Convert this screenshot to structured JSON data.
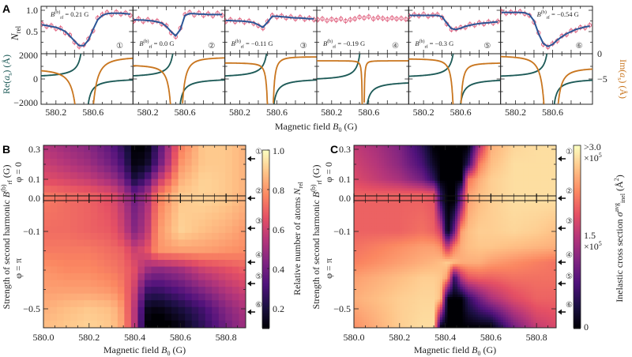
{
  "figure": {
    "panel_letters": {
      "a": "A",
      "b": "B",
      "c": "C"
    },
    "colors": {
      "fit": "#2b5797",
      "data": "#e0607e",
      "re_curve": "#1d5a57",
      "im_curve": "#c9761f",
      "axis": "#222222"
    },
    "colormap_magma": [
      "#000004",
      "#1c1044",
      "#4f127b",
      "#812581",
      "#b5367a",
      "#e55064",
      "#fb8761",
      "#fec287",
      "#fcfdbf"
    ]
  },
  "panel_a": {
    "ylabel_top": {
      "sym": "N",
      "sub": "rel"
    },
    "ylabel_re": {
      "pre": "Re(",
      "sym": "a",
      "sub": "s",
      "post": ") (Å)"
    },
    "ylabel_im": {
      "pre": "Im(",
      "sym": "a",
      "sub": "s",
      "post": ") (Å)"
    },
    "xlabel": {
      "pre": "Magnetic field ",
      "sym": "B",
      "sub": "0",
      "post": " (G)"
    },
    "brf_symbol": {
      "base": "B",
      "sup": "(b)",
      "sub": "rf"
    }
  },
  "panel_b": {
    "xlabel": {
      "pre": "Magnetic field ",
      "sym": "B",
      "sub": "0",
      "post": " (G)"
    },
    "ylabel": {
      "pre": "Strength of second harmonic ",
      "sym": "B",
      "sup": "(b)",
      "sub": "rf",
      "post": " (G)"
    },
    "phi_top": "φ = 0",
    "phi_bottom": "φ = π",
    "colorbar_label": {
      "pre": "Relative number of atoms ",
      "sym": "N",
      "sub": "rel"
    }
  },
  "panel_c": {
    "xlabel": {
      "pre": "Magnetic field ",
      "sym": "B",
      "sub": "0",
      "post": " (G)"
    },
    "ylabel": {
      "pre": "Strength of second harmonic ",
      "sym": "B",
      "sup": "(b)",
      "sub": "rf",
      "post": " (G)"
    },
    "phi_top": "φ = 0",
    "phi_bottom": "φ = π",
    "colorbar_label": {
      "pre": "Inelastic cross section ",
      "sym": "σ",
      "sup": "avg",
      "sub": "inel",
      "post": " (Å",
      "sq": "2",
      "end": ")"
    },
    "colorbar_ticks": {
      "top": ">3.0",
      "top_exp": "×10",
      "top_pow": "5",
      "mid": "1.5",
      "mid_exp": "×10",
      "mid_pow": "5",
      "bottom": "0"
    }
  },
  "chart_data": [
    {
      "panel": "A",
      "type": "line",
      "xlim": [
        580.04,
        581.03
      ],
      "x_tick_values": [
        580.2,
        580.6
      ],
      "x_tick_labels": [
        "580.2",
        "580.6"
      ],
      "top_ylim": [
        0,
        1.1
      ],
      "top_yticks": [
        {
          "v": 0.5,
          "label": "0.5"
        },
        {
          "v": 1.0,
          "label": "1.0"
        }
      ],
      "re_ylim": [
        -2000,
        2000
      ],
      "re_yticks": [
        {
          "v": 2000,
          "label": "2000"
        },
        {
          "v": 0,
          "label": "0"
        },
        {
          "v": -2000,
          "label": "−2000"
        }
      ],
      "im_ylim": [
        -10,
        0
      ],
      "im_yticks": [
        {
          "v": 0,
          "label": "0"
        },
        {
          "v": -5,
          "label": "−5"
        }
      ],
      "x": [
        580.05,
        580.1,
        580.15,
        580.2,
        580.25,
        580.3,
        580.35,
        580.4,
        580.45,
        580.5,
        580.55,
        580.6,
        580.65,
        580.7,
        580.75,
        580.8,
        580.85,
        580.9,
        580.95,
        581.0
      ],
      "typical_error": 0.07,
      "subplots": [
        {
          "id": "①",
          "brf_value": " = 0.21 G",
          "label_pos": "top-left",
          "fit": [
            0.66,
            0.64,
            0.62,
            0.6,
            0.56,
            0.5,
            0.4,
            0.28,
            0.17,
            0.17,
            0.3,
            0.55,
            0.78,
            0.88,
            0.92,
            0.93,
            0.93,
            0.93,
            0.92,
            0.91
          ],
          "measured": [
            0.68,
            0.62,
            0.64,
            0.57,
            0.58,
            0.47,
            0.42,
            0.25,
            0.15,
            0.19,
            0.33,
            0.52,
            0.82,
            0.9,
            0.95,
            0.9,
            0.96,
            0.91,
            0.94,
            0.88
          ],
          "resonance_B0": 580.51,
          "re_bg": 80,
          "im_left": -3.0,
          "im_right": -0.6,
          "im_width": 0.09
        },
        {
          "id": "②",
          "brf_value": " = 0.0 G",
          "label_pos": "bottom",
          "fit": [
            0.78,
            0.77,
            0.77,
            0.76,
            0.75,
            0.73,
            0.7,
            0.62,
            0.5,
            0.4,
            0.55,
            0.88,
            0.92,
            0.92,
            0.91,
            0.91,
            0.9,
            0.9,
            0.9,
            0.9
          ],
          "measured": [
            0.75,
            0.8,
            0.74,
            0.78,
            0.73,
            0.75,
            0.68,
            0.64,
            0.47,
            0.38,
            0.58,
            0.9,
            0.95,
            0.89,
            0.94,
            0.88,
            0.92,
            0.87,
            0.93,
            0.88
          ],
          "resonance_B0": 580.51,
          "re_bg": 80,
          "im_left": -2.2,
          "im_right": -0.7,
          "im_width": 0.06
        },
        {
          "id": "③",
          "brf_value": " = −0.11 G",
          "label_pos": "bottom",
          "fit": [
            0.76,
            0.76,
            0.75,
            0.75,
            0.74,
            0.73,
            0.71,
            0.66,
            0.6,
            0.72,
            0.86,
            0.86,
            0.85,
            0.84,
            0.83,
            0.82,
            0.82,
            0.81,
            0.8,
            0.8
          ],
          "measured": [
            0.74,
            0.78,
            0.73,
            0.77,
            0.72,
            0.75,
            0.69,
            0.64,
            0.58,
            0.74,
            0.88,
            0.84,
            0.87,
            0.82,
            0.85,
            0.8,
            0.84,
            0.79,
            0.82,
            0.78
          ],
          "resonance_B0": 580.53,
          "re_bg": 80,
          "im_left": -1.8,
          "im_right": -0.6,
          "im_width": 0.03
        },
        {
          "id": "④",
          "brf_value": " = −0.19 G",
          "label_pos": "bottom",
          "fit": null,
          "measured": [
            0.78,
            0.8,
            0.76,
            0.79,
            0.77,
            0.8,
            0.75,
            0.78,
            0.8,
            0.84,
            0.82,
            0.85,
            0.8,
            0.83,
            0.81,
            0.79,
            0.82,
            0.8,
            0.81,
            0.79
          ],
          "resonance_B0": 580.54,
          "re_bg": -150,
          "im_left": -1.4,
          "im_right": -1.4,
          "im_width": 0.01
        },
        {
          "id": "⑤",
          "brf_value": " = −0.3 G",
          "label_pos": "bottom",
          "fit": [
            0.88,
            0.88,
            0.88,
            0.88,
            0.88,
            0.88,
            0.88,
            0.85,
            0.7,
            0.57,
            0.55,
            0.58,
            0.62,
            0.65,
            0.67,
            0.69,
            0.7,
            0.71,
            0.72,
            0.73
          ],
          "measured": [
            0.86,
            0.9,
            0.87,
            0.91,
            0.86,
            0.89,
            0.9,
            0.83,
            0.68,
            0.55,
            0.56,
            0.6,
            0.6,
            0.67,
            0.65,
            0.71,
            0.68,
            0.73,
            0.7,
            0.74
          ],
          "resonance_B0": 580.56,
          "re_bg": 60,
          "im_left": -1.0,
          "im_right": -1.8,
          "im_width": 0.04
        },
        {
          "id": "⑥",
          "brf_value": " = −0.54 G",
          "label_pos": "top-right",
          "fit": [
            0.95,
            0.95,
            0.95,
            0.95,
            0.95,
            0.94,
            0.9,
            0.75,
            0.45,
            0.22,
            0.15,
            0.2,
            0.3,
            0.38,
            0.45,
            0.5,
            0.55,
            0.58,
            0.61,
            0.63
          ],
          "measured": [
            0.97,
            0.93,
            0.96,
            0.94,
            0.97,
            0.92,
            0.88,
            0.72,
            0.47,
            0.2,
            0.14,
            0.22,
            0.28,
            0.4,
            0.43,
            0.52,
            0.53,
            0.6,
            0.59,
            0.65
          ],
          "resonance_B0": 580.58,
          "re_bg": 80,
          "im_left": -0.4,
          "im_right": -2.8,
          "im_width": 0.07
        }
      ]
    },
    {
      "panel": "B",
      "type": "heatmap",
      "quantity": "Nrel",
      "xlim": [
        580.0,
        580.886
      ],
      "x_ticks": [
        {
          "v": 580.0,
          "label": "580.0"
        },
        {
          "v": 580.2,
          "label": "580.2"
        },
        {
          "v": 580.4,
          "label": "580.4"
        },
        {
          "v": 580.6,
          "label": "580.6"
        },
        {
          "v": 580.8,
          "label": "580.8"
        }
      ],
      "y_ticks": [
        {
          "v": 0.3,
          "label": "0.3"
        },
        {
          "v": 0.1,
          "label": "0.1"
        },
        {
          "v": 0.0,
          "label": "0.0"
        },
        {
          "v": -0.1,
          "label": "−0.1"
        },
        {
          "v": -0.5,
          "label": "−0.5"
        }
      ],
      "x": [
        580.0,
        580.1,
        580.2,
        580.3,
        580.35,
        580.4,
        580.45,
        580.5,
        580.6,
        580.7,
        580.8,
        580.9
      ],
      "y": [
        0.32,
        0.2,
        0.1,
        0.0,
        -0.1,
        -0.2,
        -0.3,
        -0.4,
        -0.5,
        -0.6
      ],
      "z": [
        [
          0.55,
          0.5,
          0.45,
          0.35,
          0.25,
          0.1,
          0.1,
          0.3,
          0.75,
          0.9,
          0.9,
          0.85
        ],
        [
          0.6,
          0.55,
          0.5,
          0.4,
          0.3,
          0.12,
          0.15,
          0.35,
          0.8,
          0.9,
          0.9,
          0.85
        ],
        [
          0.65,
          0.62,
          0.58,
          0.5,
          0.4,
          0.2,
          0.3,
          0.55,
          0.85,
          0.92,
          0.9,
          0.85
        ],
        [
          0.75,
          0.72,
          0.7,
          0.65,
          0.55,
          0.4,
          0.5,
          0.75,
          0.9,
          0.92,
          0.9,
          0.85
        ],
        [
          0.72,
          0.72,
          0.7,
          0.68,
          0.6,
          0.45,
          0.55,
          0.8,
          0.92,
          0.88,
          0.85,
          0.8
        ],
        [
          0.75,
          0.75,
          0.75,
          0.72,
          0.7,
          0.6,
          0.65,
          0.8,
          0.82,
          0.82,
          0.8,
          0.78
        ],
        [
          0.8,
          0.78,
          0.78,
          0.75,
          0.72,
          0.65,
          0.5,
          0.45,
          0.5,
          0.6,
          0.65,
          0.7
        ],
        [
          0.82,
          0.82,
          0.82,
          0.8,
          0.75,
          0.6,
          0.3,
          0.28,
          0.35,
          0.45,
          0.55,
          0.62
        ],
        [
          0.85,
          0.88,
          0.9,
          0.88,
          0.8,
          0.55,
          0.15,
          0.12,
          0.2,
          0.3,
          0.45,
          0.55
        ],
        [
          0.88,
          0.9,
          0.92,
          0.9,
          0.82,
          0.55,
          0.1,
          0.05,
          0.12,
          0.25,
          0.4,
          0.52
        ]
      ],
      "colorbar": {
        "min": 0.1,
        "max": 1.0,
        "reversed": false,
        "ticks": [
          {
            "v": 1.0,
            "label": "1.0"
          },
          {
            "v": 0.8,
            "label": "0.8"
          },
          {
            "v": 0.6,
            "label": "0.6"
          },
          {
            "v": 0.4,
            "label": "0.4"
          },
          {
            "v": 0.2,
            "label": "0.2"
          }
        ]
      },
      "markers": [
        "①",
        "②",
        "③",
        "④",
        "⑤",
        "⑥"
      ]
    },
    {
      "panel": "C",
      "type": "heatmap",
      "quantity": "sigma_inel_avg (×10^5 Å^2)",
      "xlim": [
        580.0,
        580.886
      ],
      "x_ticks": [
        {
          "v": 580.0,
          "label": "580.0"
        },
        {
          "v": 580.2,
          "label": "580.2"
        },
        {
          "v": 580.4,
          "label": "580.4"
        },
        {
          "v": 580.6,
          "label": "580.6"
        },
        {
          "v": 580.8,
          "label": "580.8"
        }
      ],
      "y_ticks": [
        {
          "v": 0.3,
          "label": "0.3"
        },
        {
          "v": 0.1,
          "label": "0.1"
        },
        {
          "v": 0.0,
          "label": "0.0"
        },
        {
          "v": -0.1,
          "label": "−0.1"
        },
        {
          "v": -0.5,
          "label": "−0.5"
        }
      ],
      "x": [
        580.0,
        580.1,
        580.2,
        580.3,
        580.35,
        580.38,
        580.41,
        580.44,
        580.47,
        580.5,
        580.55,
        580.6,
        580.7,
        580.8,
        580.9
      ],
      "y": [
        0.32,
        0.2,
        0.1,
        0.0,
        -0.1,
        -0.18,
        -0.26,
        -0.34,
        -0.45,
        -0.6
      ],
      "z": [
        [
          1.4,
          1.6,
          1.9,
          2.5,
          3,
          3,
          3,
          3,
          3,
          3,
          1.5,
          0.5,
          0.25,
          0.2,
          0.2
        ],
        [
          1.3,
          1.5,
          1.8,
          2.3,
          2.8,
          3,
          3,
          3,
          3,
          2.5,
          0.8,
          0.4,
          0.2,
          0.2,
          0.2
        ],
        [
          1.2,
          1.4,
          1.6,
          2.0,
          2.5,
          3,
          3,
          3,
          3,
          0.9,
          0.5,
          0.3,
          0.2,
          0.2,
          0.2
        ],
        [
          1.0,
          1.0,
          1.0,
          1.0,
          1.1,
          2.5,
          3,
          3,
          2.0,
          0.6,
          0.4,
          0.3,
          0.2,
          0.2,
          0.2
        ],
        [
          1.0,
          1.0,
          1.0,
          0.9,
          1.0,
          1.3,
          3,
          2.0,
          0.6,
          0.4,
          0.3,
          0.3,
          0.25,
          0.3,
          0.4
        ],
        [
          0.9,
          0.8,
          0.7,
          0.6,
          0.6,
          0.7,
          1.5,
          0.8,
          0.5,
          0.4,
          0.35,
          0.35,
          0.4,
          0.45,
          0.5
        ],
        [
          0.8,
          0.7,
          0.6,
          0.5,
          0.45,
          0.4,
          0.3,
          0.4,
          0.5,
          0.5,
          0.5,
          0.6,
          0.7,
          0.8,
          0.9
        ],
        [
          0.6,
          0.5,
          0.4,
          0.3,
          0.3,
          0.35,
          0.6,
          2.5,
          1.5,
          1.1,
          1.0,
          1.0,
          0.9,
          0.9,
          0.9
        ],
        [
          0.5,
          0.4,
          0.3,
          0.25,
          0.25,
          0.4,
          3,
          3,
          3,
          2.5,
          2.0,
          1.6,
          1.2,
          1.0,
          1.0
        ],
        [
          0.7,
          0.5,
          0.3,
          0.2,
          0.2,
          3,
          3,
          3,
          3,
          3,
          3,
          3,
          2.0,
          1.4,
          1.2
        ]
      ],
      "colorbar": {
        "min": 0,
        "max": 3.0,
        "reversed": true
      },
      "markers": [
        "①",
        "②",
        "③",
        "④",
        "⑤",
        "⑥"
      ]
    }
  ]
}
